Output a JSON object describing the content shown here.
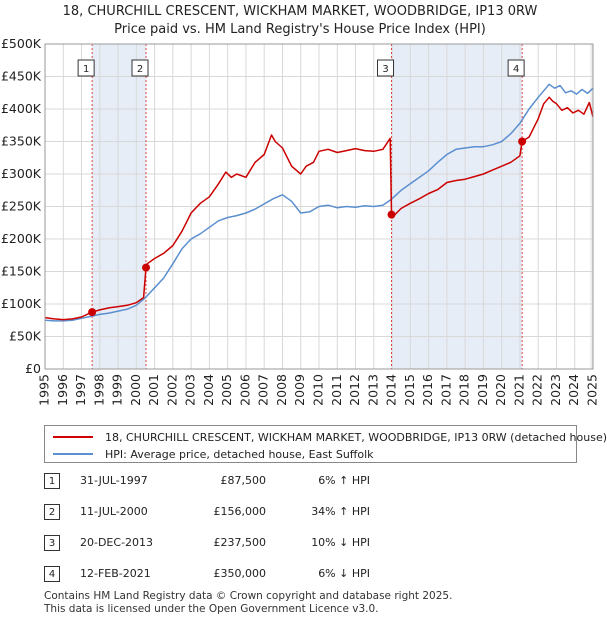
{
  "chart_data": {
    "type": "line",
    "title": "18, CHURCHILL CRESCENT, WICKHAM MARKET, WOODBRIDGE, IP13 0RW",
    "subtitle": "Price paid vs. HM Land Registry's House Price Index (HPI)",
    "xlim": [
      1995,
      2025
    ],
    "ylim": [
      0,
      500000
    ],
    "x_ticks": [
      1995,
      1996,
      1997,
      1998,
      1999,
      2000,
      2001,
      2002,
      2003,
      2004,
      2005,
      2006,
      2007,
      2008,
      2009,
      2010,
      2011,
      2012,
      2013,
      2014,
      2015,
      2016,
      2017,
      2018,
      2019,
      2020,
      2021,
      2022,
      2023,
      2024,
      2025
    ],
    "y_ticks": [
      {
        "value": 0,
        "label": "£0"
      },
      {
        "value": 50000,
        "label": "£50K"
      },
      {
        "value": 100000,
        "label": "£100K"
      },
      {
        "value": 150000,
        "label": "£150K"
      },
      {
        "value": 200000,
        "label": "£200K"
      },
      {
        "value": 250000,
        "label": "£250K"
      },
      {
        "value": 300000,
        "label": "£300K"
      },
      {
        "value": 350000,
        "label": "£350K"
      },
      {
        "value": 400000,
        "label": "£400K"
      },
      {
        "value": 450000,
        "label": "£450K"
      },
      {
        "value": 500000,
        "label": "£500K"
      }
    ],
    "series": [
      {
        "name": "18, CHURCHILL CRESCENT, WICKHAM MARKET, WOODBRIDGE, IP13 0RW (detached house)",
        "color": "#cc0000",
        "x": [
          1995.0,
          1995.5,
          1996.0,
          1996.5,
          1997.0,
          1997.58,
          1998.0,
          1998.5,
          1999.0,
          1999.5,
          2000.0,
          2000.4,
          2000.53,
          2000.6,
          2001.0,
          2001.5,
          2002.0,
          2002.5,
          2003.0,
          2003.5,
          2004.0,
          2004.5,
          2004.9,
          2005.2,
          2005.5,
          2006.0,
          2006.5,
          2007.0,
          2007.4,
          2007.6,
          2008.0,
          2008.5,
          2009.0,
          2009.3,
          2009.7,
          2010.0,
          2010.5,
          2011.0,
          2011.5,
          2012.0,
          2012.5,
          2013.0,
          2013.5,
          2013.9,
          2013.97,
          2014.1,
          2014.5,
          2015.0,
          2015.5,
          2016.0,
          2016.5,
          2017.0,
          2017.5,
          2018.0,
          2018.5,
          2019.0,
          2019.5,
          2020.0,
          2020.5,
          2021.0,
          2021.12,
          2021.5,
          2022.0,
          2022.3,
          2022.6,
          2022.8,
          2023.0,
          2023.3,
          2023.6,
          2023.9,
          2024.2,
          2024.5,
          2024.8,
          2025.0
        ],
        "y": [
          79000,
          77000,
          76000,
          77000,
          80000,
          87500,
          91000,
          94000,
          96000,
          98000,
          102000,
          110000,
          156000,
          162000,
          170000,
          178000,
          190000,
          212000,
          240000,
          255000,
          265000,
          285000,
          303000,
          295000,
          300000,
          295000,
          318000,
          330000,
          360000,
          350000,
          340000,
          312000,
          300000,
          312000,
          318000,
          335000,
          338000,
          333000,
          336000,
          339000,
          336000,
          335000,
          338000,
          355000,
          237500,
          236000,
          247000,
          255000,
          262000,
          270000,
          276000,
          287000,
          290000,
          292000,
          296000,
          300000,
          306000,
          312000,
          318000,
          328000,
          350000,
          357000,
          385000,
          408000,
          418000,
          412000,
          408000,
          398000,
          402000,
          394000,
          398000,
          392000,
          410000,
          388000
        ]
      },
      {
        "name": "HPI: Average price, detached house, East Suffolk",
        "color": "#5b8fcf",
        "x": [
          1995.0,
          1995.5,
          1996.0,
          1996.5,
          1997.0,
          1997.5,
          1998.0,
          1998.5,
          1999.0,
          1999.5,
          2000.0,
          2000.5,
          2001.0,
          2001.5,
          2002.0,
          2002.5,
          2003.0,
          2003.5,
          2004.0,
          2004.5,
          2005.0,
          2005.5,
          2006.0,
          2006.5,
          2007.0,
          2007.5,
          2008.0,
          2008.5,
          2009.0,
          2009.5,
          2010.0,
          2010.5,
          2011.0,
          2011.5,
          2012.0,
          2012.5,
          2013.0,
          2013.5,
          2014.0,
          2014.5,
          2015.0,
          2015.5,
          2016.0,
          2016.5,
          2017.0,
          2017.5,
          2018.0,
          2018.5,
          2019.0,
          2019.5,
          2020.0,
          2020.5,
          2021.0,
          2021.5,
          2022.0,
          2022.3,
          2022.6,
          2022.9,
          2023.2,
          2023.5,
          2023.8,
          2024.1,
          2024.4,
          2024.7,
          2025.0
        ],
        "y": [
          75000,
          74000,
          74000,
          75000,
          78000,
          81000,
          84000,
          86000,
          89000,
          92000,
          98000,
          110000,
          125000,
          140000,
          162000,
          185000,
          200000,
          208000,
          218000,
          228000,
          233000,
          236000,
          240000,
          246000,
          254000,
          262000,
          268000,
          258000,
          240000,
          242000,
          250000,
          252000,
          248000,
          250000,
          249000,
          251000,
          250000,
          252000,
          262000,
          275000,
          285000,
          295000,
          305000,
          318000,
          330000,
          338000,
          340000,
          342000,
          342000,
          345000,
          350000,
          362000,
          378000,
          400000,
          418000,
          428000,
          438000,
          432000,
          436000,
          425000,
          428000,
          423000,
          430000,
          424000,
          432000
        ]
      }
    ],
    "sales": [
      {
        "num": "1",
        "x": 1997.58,
        "y": 87500
      },
      {
        "num": "2",
        "x": 2000.53,
        "y": 156000
      },
      {
        "num": "3",
        "x": 2013.97,
        "y": 237500
      },
      {
        "num": "4",
        "x": 2021.12,
        "y": 350000
      }
    ],
    "shaded_band_color": "#dde6f3",
    "grid": true
  },
  "legend": {
    "items": [
      {
        "label": "18, CHURCHILL CRESCENT, WICKHAM MARKET, WOODBRIDGE, IP13 0RW (detached house)",
        "color": "#cc0000"
      },
      {
        "label": "HPI: Average price, detached house, East Suffolk",
        "color": "#5b8fcf"
      }
    ]
  },
  "transactions": [
    {
      "num": "1",
      "date": "31-JUL-1997",
      "price": "£87,500",
      "hpi": "6% ↑ HPI"
    },
    {
      "num": "2",
      "date": "11-JUL-2000",
      "price": "£156,000",
      "hpi": "34% ↑ HPI"
    },
    {
      "num": "3",
      "date": "20-DEC-2013",
      "price": "£237,500",
      "hpi": "10% ↓ HPI"
    },
    {
      "num": "4",
      "date": "12-FEB-2021",
      "price": "£350,000",
      "hpi": "6% ↓ HPI"
    }
  ],
  "footer": {
    "line1": "Contains HM Land Registry data © Crown copyright and database right 2025.",
    "line2": "This data is licensed under the Open Government Licence v3.0."
  }
}
